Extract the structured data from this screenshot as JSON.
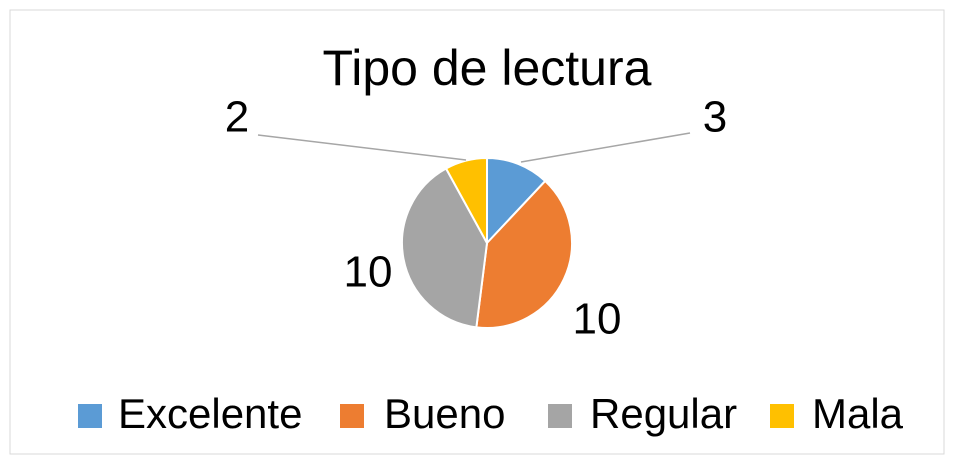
{
  "chart_data": {
    "type": "pie",
    "title": "Tipo de lectura",
    "categories": [
      "Excelente",
      "Bueno",
      "Regular",
      "Mala"
    ],
    "values": [
      3,
      10,
      10,
      2
    ],
    "colors": [
      "#5b9bd5",
      "#ed7d31",
      "#a5a5a5",
      "#ffc000"
    ],
    "legend": "bottom"
  }
}
